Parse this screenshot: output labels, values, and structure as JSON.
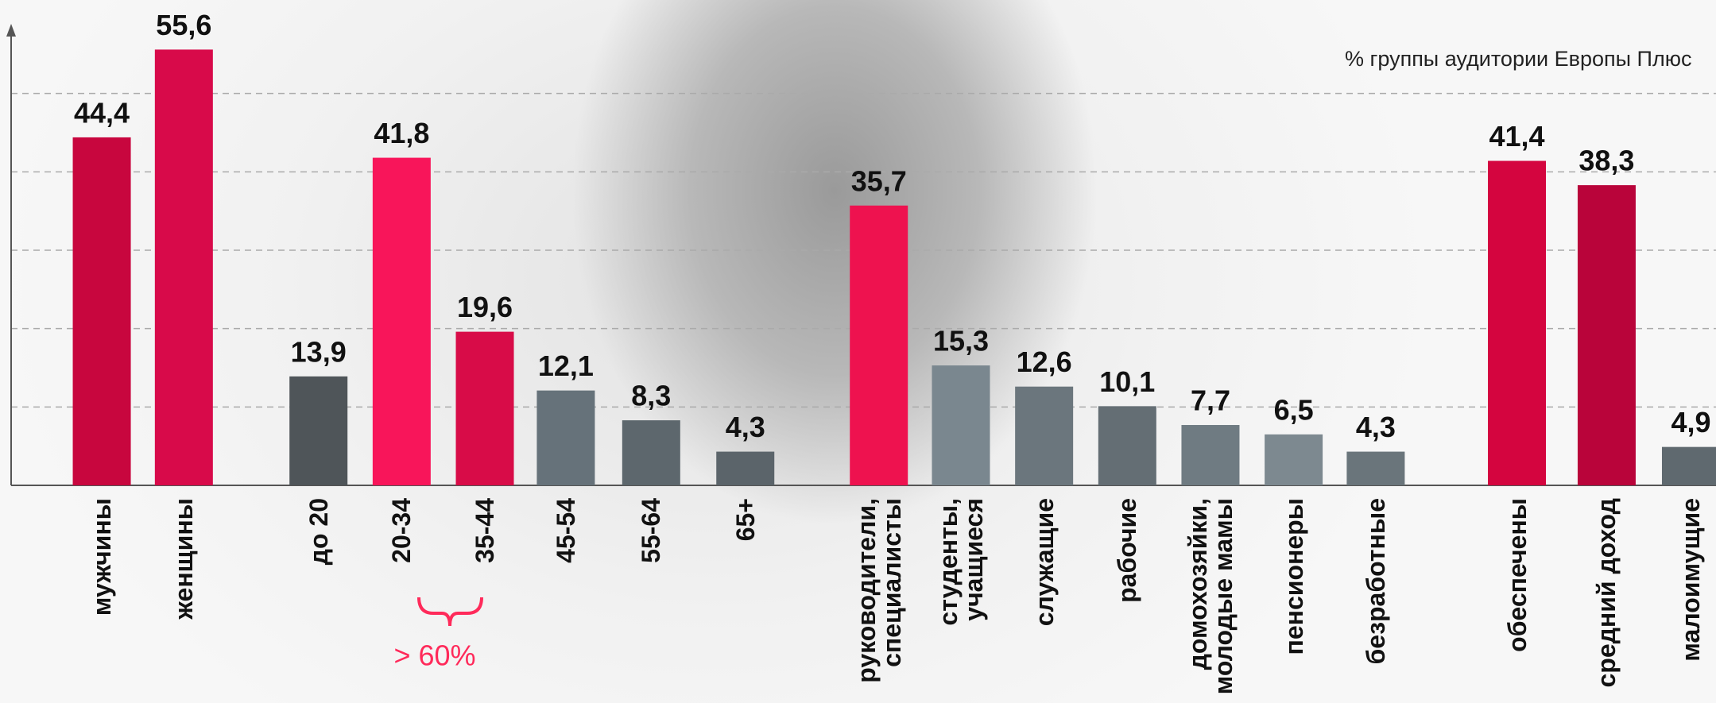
{
  "chart_data": {
    "type": "bar",
    "subtitle": "% группы аудитории Европы Плюс",
    "categories": [
      "мужчины",
      "женщины",
      "до 20",
      "20-34",
      "35-44",
      "45-54",
      "55-64",
      "65+",
      "руководители,\nспециалисты",
      "студенты,\nучащиеся",
      "служащие",
      "рабочие",
      "домохозяйки,\nмолодые мамы",
      "пенсионеры",
      "безработные",
      "обеспечены",
      "средний доход",
      "малоимущие"
    ],
    "values": [
      44.4,
      55.6,
      13.9,
      41.8,
      19.6,
      12.1,
      8.3,
      4.3,
      35.7,
      15.3,
      12.6,
      10.1,
      7.7,
      6.5,
      4.3,
      41.4,
      38.3,
      4.9
    ],
    "value_labels": [
      "44,4",
      "55,6",
      "13,9",
      "41,8",
      "19,6",
      "12,1",
      "8,3",
      "4,3",
      "35,7",
      "15,3",
      "12,6",
      "10,1",
      "7,7",
      "6,5",
      "4,3",
      "41,4",
      "38,3",
      "4,9"
    ],
    "colors": [
      "#c8063e",
      "#d80a4a",
      "#4f5559",
      "#f8155a",
      "#d80c48",
      "#66727a",
      "#5d676d",
      "#5b646a",
      "#ee124f",
      "#7a878f",
      "#6b767d",
      "#646e74",
      "#6f7b82",
      "#7d8990",
      "#6a757b",
      "#d4053f",
      "#b9043a",
      "#5f696f"
    ],
    "annotation": "> 60%",
    "ylim": [
      0,
      60
    ],
    "yticks": [
      10,
      20,
      30,
      40,
      50
    ],
    "grid": true
  }
}
